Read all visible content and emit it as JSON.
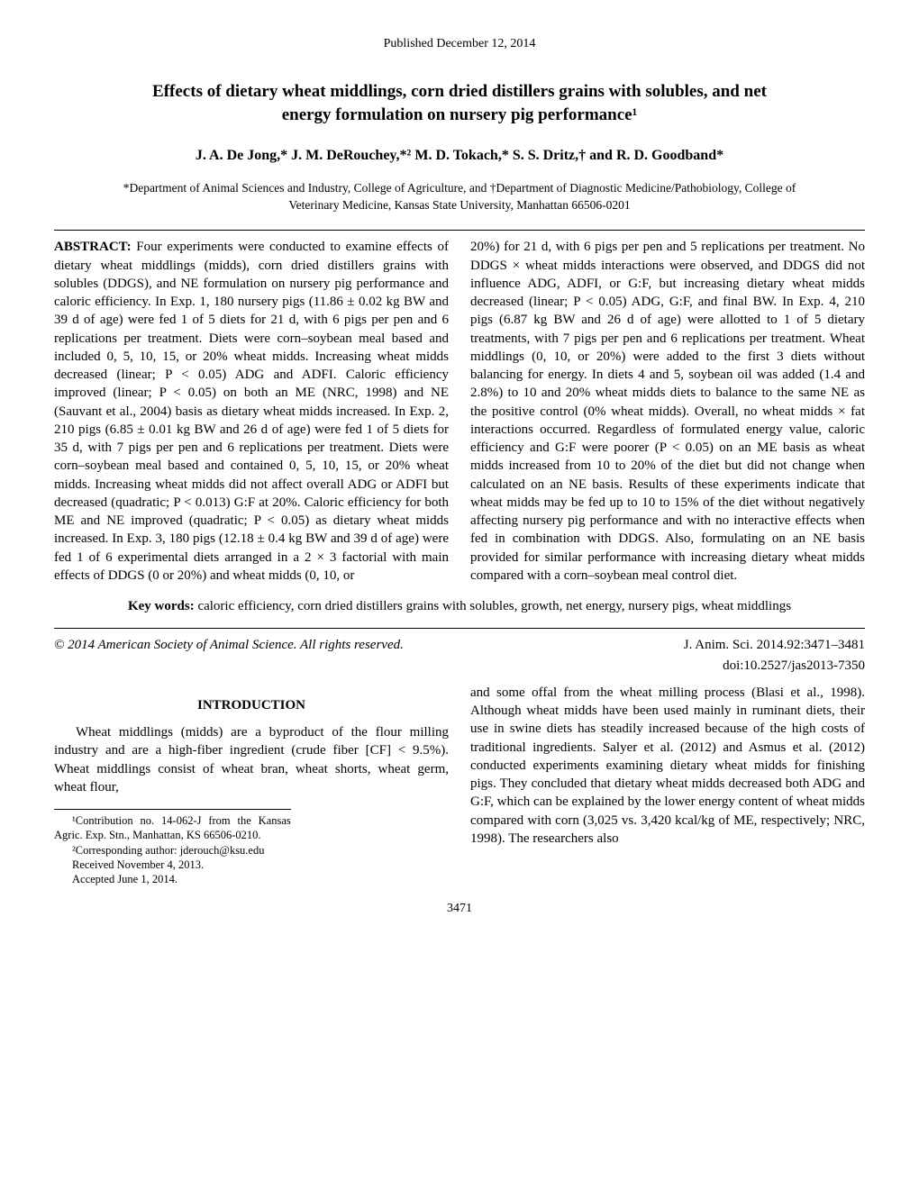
{
  "header": {
    "published_date": "Published December 12, 2014"
  },
  "title": "Effects of dietary wheat middlings, corn dried distillers grains with solubles, and net energy formulation on nursery pig performance¹",
  "authors": "J. A. De Jong,* J. M. DeRouchey,*² M. D. Tokach,* S. S. Dritz,† and R. D. Goodband*",
  "affiliations": "*Department of Animal Sciences and Industry, College of Agriculture, and †Department of Diagnostic Medicine/Pathobiology, College of Veterinary Medicine, Kansas State University, Manhattan 66506-0201",
  "abstract": {
    "label": "ABSTRACT:",
    "left": "Four experiments were conducted to examine effects of dietary wheat middlings (midds), corn dried distillers grains with solubles (DDGS), and NE formulation on nursery pig performance and caloric efficiency. In Exp. 1, 180 nursery pigs (11.86 ± 0.02 kg BW and 39 d of age) were fed 1 of 5 diets for 21 d, with 6 pigs per pen and 6 replications per treatment. Diets were corn–soybean meal based and included 0, 5, 10, 15, or 20% wheat midds. Increasing wheat midds decreased (linear; P < 0.05) ADG and ADFI. Caloric efficiency improved (linear; P < 0.05) on both an ME (NRC, 1998) and NE (Sauvant et al., 2004) basis as dietary wheat midds increased. In Exp. 2, 210 pigs (6.85 ± 0.01 kg BW and 26 d of age) were fed 1 of 5 diets for 35 d, with 7 pigs per pen and 6 replications per treatment. Diets were corn–soybean meal based and contained 0, 5, 10, 15, or 20% wheat midds. Increasing wheat midds did not affect overall ADG or ADFI but decreased (quadratic; P < 0.013) G:F at 20%. Caloric efficiency for both ME and NE improved (quadratic; P < 0.05) as dietary wheat midds increased. In Exp. 3, 180 pigs (12.18 ± 0.4 kg BW and 39 d of age) were fed 1 of 6 experimental diets arranged in a 2 × 3 factorial with main effects of DDGS (0 or 20%) and wheat midds (0, 10, or",
    "right": "20%) for 21 d, with 6 pigs per pen and 5 replications per treatment. No DDGS × wheat midds interactions were observed, and DDGS did not influence ADG, ADFI, or G:F, but increasing dietary wheat midds decreased (linear; P < 0.05) ADG, G:F, and final BW. In Exp. 4, 210 pigs (6.87 kg BW and 26 d of age) were allotted to 1 of 5 dietary treatments, with 7 pigs per pen and 6 replications per treatment. Wheat middlings (0, 10, or 20%) were added to the first 3 diets without balancing for energy. In diets 4 and 5, soybean oil was added (1.4 and 2.8%) to 10 and 20% wheat midds diets to balance to the same NE as the positive control (0% wheat midds). Overall, no wheat midds × fat interactions occurred. Regardless of formulated energy value, caloric efficiency and G:F were poorer (P < 0.05) on an ME basis as wheat midds increased from 10 to 20% of the diet but did not change when calculated on an NE basis. Results of these experiments indicate that wheat midds may be fed up to 10 to 15% of the diet without negatively affecting nursery pig performance and with no interactive effects when fed in combination with DDGS. Also, formulating on an NE basis provided for similar performance with increasing dietary wheat midds compared with a corn–soybean meal control diet."
  },
  "keywords": {
    "label": "Key words:",
    "text": "caloric efficiency, corn dried distillers grains with solubles, growth, net energy, nursery pigs, wheat middlings"
  },
  "copyright": {
    "left": "© 2014 American Society of Animal Science. All rights reserved.",
    "right": "J. Anim. Sci. 2014.92:3471–3481",
    "doi": "doi:10.2527/jas2013-7350"
  },
  "introduction": {
    "heading": "INTRODUCTION",
    "left_para": "Wheat middlings (midds) are a byproduct of the flour milling industry and are a high-fiber ingredient (crude fiber [CF] < 9.5%). Wheat middlings consist of wheat bran, wheat shorts, wheat germ, wheat flour,",
    "right_para": "and some offal from the wheat milling process (Blasi et al., 1998). Although wheat midds have been used mainly in ruminant diets, their use in swine diets has steadily increased because of the high costs of traditional ingredients. Salyer et al. (2012) and Asmus et al. (2012) conducted experiments examining dietary wheat midds for finishing pigs. They concluded that dietary wheat midds decreased both ADG and G:F, which can be explained by the lower energy content of wheat midds compared with corn (3,025 vs. 3,420 kcal/kg of ME, respectively; NRC, 1998). The researchers also"
  },
  "footnotes": {
    "fn1": "¹Contribution no. 14-062-J from the Kansas Agric. Exp. Stn., Manhattan, KS 66506-0210.",
    "fn2": "²Corresponding author: jderouch@ksu.edu",
    "fn3": "Received November 4, 2013.",
    "fn4": "Accepted June 1, 2014."
  },
  "page_number": "3471"
}
